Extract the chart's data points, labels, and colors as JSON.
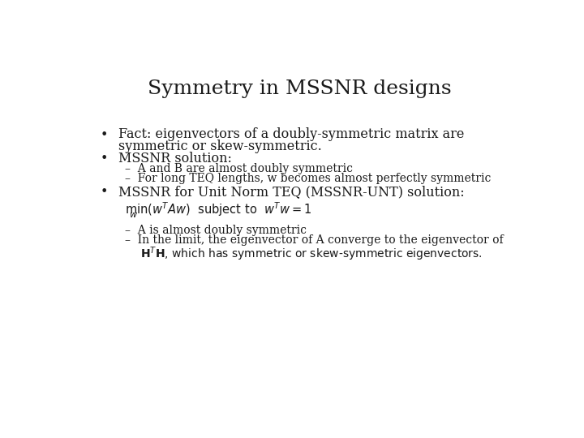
{
  "title": "Symmetry in MSSNR designs",
  "background_color": "#ffffff",
  "text_color": "#1a1a1a",
  "title_fontsize": 18,
  "body_fontsize": 11.5,
  "sub_fontsize": 10.0,
  "bullet1_line1": "Fact: eigenvectors of a doubly-symmetric matrix are",
  "bullet1_line2": "symmetric or skew-symmetric.",
  "bullet2": "MSSNR solution:",
  "sub2_1": "–  A and B are almost doubly symmetric",
  "sub2_2": "–  For long TEQ lengths, w becomes almost perfectly symmetric",
  "bullet3": "MSSNR for Unit Norm TEQ (MSSNR-UNT) solution:",
  "sub3_1": "–  A is almost doubly symmetric",
  "sub3_2_line1": "–  In the limit, the eigenvector of A converge to the eigenvector of",
  "sub3_2_line2": "    HᴴH, which has symmetric or skew-symmetric eigenvectors."
}
